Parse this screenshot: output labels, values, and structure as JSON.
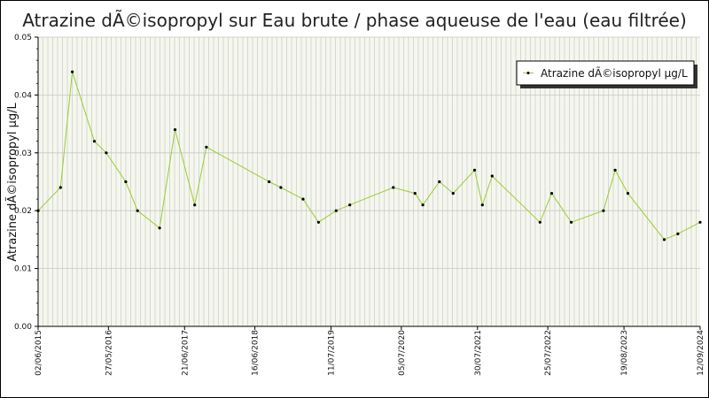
{
  "chart_data": {
    "type": "line",
    "title": "Atrazine dÃ©isopropyl sur Eau brute / phase aqueuse de l'eau (eau filtrée)",
    "ylabel": "Atrazine dÃ©isopropyl µg/L",
    "xlabel": "",
    "ylim": [
      0,
      0.05
    ],
    "y_ticks": [
      "0.00",
      "0.01",
      "0.02",
      "0.03",
      "0.04",
      "0.05"
    ],
    "x_range": [
      "2015-06-02",
      "2024-09-12"
    ],
    "x_tick_dates": [
      "2015-06-02",
      "2016-05-27",
      "2017-06-21",
      "2018-06-16",
      "2019-07-11",
      "2020-07-05",
      "2021-07-30",
      "2022-07-25",
      "2023-08-19",
      "2024-09-12"
    ],
    "x_tick_labels": [
      "02/06/2015",
      "27/05/2016",
      "21/06/2017",
      "16/06/2018",
      "11/07/2019",
      "05/07/2020",
      "30/07/2021",
      "25/07/2022",
      "19/08/2023",
      "12/09/2024"
    ],
    "grid": true,
    "legend_position": "top-right",
    "line_color": "#99cc33",
    "marker_color": "#000000",
    "series": [
      {
        "name": "Atrazine dÃ©isopropyl µg/L",
        "x": [
          "2015-06-02",
          "2015-09-25",
          "2015-11-24",
          "2016-03-16",
          "2016-05-16",
          "2016-08-24",
          "2016-10-23",
          "2017-02-13",
          "2017-05-03",
          "2017-08-12",
          "2017-10-11",
          "2018-08-28",
          "2018-10-27",
          "2019-02-18",
          "2019-05-08",
          "2019-08-06",
          "2019-10-15",
          "2020-05-25",
          "2020-09-13",
          "2020-10-23",
          "2021-01-16",
          "2021-03-27",
          "2021-07-15",
          "2021-08-24",
          "2021-10-13",
          "2022-06-15",
          "2022-08-14",
          "2022-11-22",
          "2023-05-06",
          "2023-07-05",
          "2023-09-08",
          "2024-03-12",
          "2024-05-21",
          "2024-09-12"
        ],
        "y": [
          0.02,
          0.024,
          0.044,
          0.032,
          0.03,
          0.025,
          0.02,
          0.017,
          0.034,
          0.021,
          0.031,
          0.025,
          0.024,
          0.022,
          0.018,
          0.02,
          0.021,
          0.024,
          0.023,
          0.021,
          0.025,
          0.023,
          0.027,
          0.021,
          0.026,
          0.018,
          0.023,
          0.018,
          0.02,
          0.027,
          0.023,
          0.015,
          0.016,
          0.018
        ]
      }
    ]
  }
}
